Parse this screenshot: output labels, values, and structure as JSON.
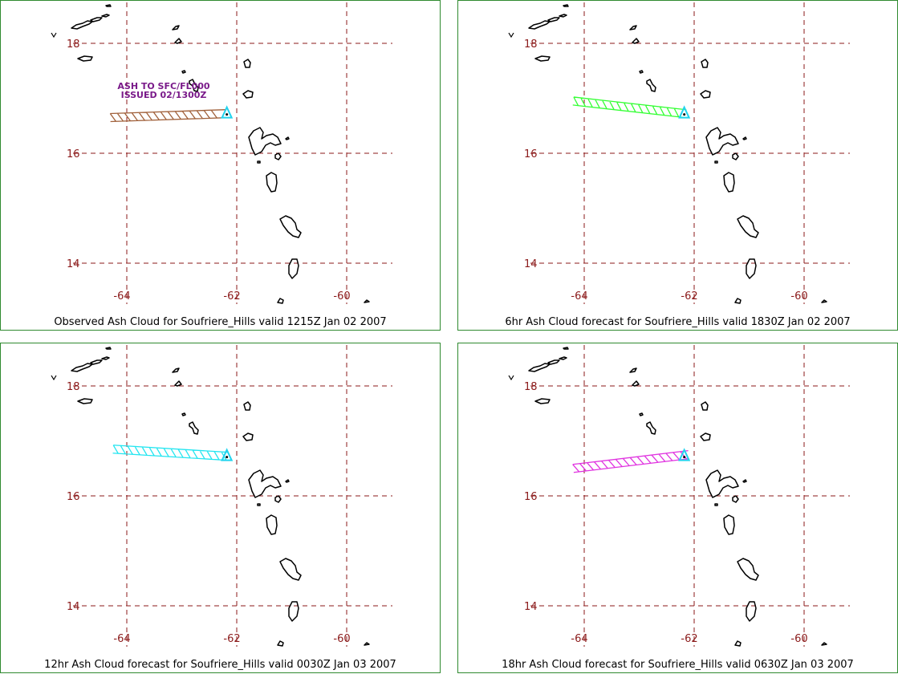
{
  "colors": {
    "border": "#2f8a2f",
    "grid": "#8b1a1a",
    "tick_label": "#8b1a1a",
    "coast": "#000000",
    "volcano_marker": "#22d3ee",
    "annotation": "#7a1a8a"
  },
  "map": {
    "lon_ticks": [
      -64,
      -62,
      -60
    ],
    "lat_ticks": [
      18,
      16,
      14
    ],
    "lon_labels": [
      "-64",
      "-62",
      "-60"
    ],
    "lat_labels": [
      "18",
      "16",
      "14"
    ],
    "volcano": {
      "name": "Soufriere_Hills",
      "lon": -62.18,
      "lat": 16.72,
      "icon": "triangle-icon"
    }
  },
  "panels": [
    {
      "caption": "Observed Ash Cloud for Soufriere_Hills valid 1215Z Jan 02 2007",
      "cloud_color": "#a0603a",
      "cloud_start": {
        "lon": -64.3,
        "lat": 16.65
      },
      "cloud_end": {
        "lon": -62.2,
        "lat": 16.72
      },
      "annotation": [
        "ASH TO SFC/FL000",
        "ISSUED 02/1300Z"
      ]
    },
    {
      "caption": "6hr Ash Cloud forecast for Soufriere_Hills valid 1830Z Jan 02 2007",
      "cloud_color": "#33ff33",
      "cloud_start": {
        "lon": -64.2,
        "lat": 16.95
      },
      "cloud_end": {
        "lon": -62.15,
        "lat": 16.72
      }
    },
    {
      "caption": "12hr Ash Cloud forecast for Soufriere_Hills valid 0030Z Jan 03 2007",
      "cloud_color": "#22e5f0",
      "cloud_start": {
        "lon": -64.25,
        "lat": 16.85
      },
      "cloud_end": {
        "lon": -62.15,
        "lat": 16.72
      }
    },
    {
      "caption": "18hr Ash Cloud forecast for Soufriere_Hills valid 0630Z Jan 03 2007",
      "cloud_color": "#e033e0",
      "cloud_start": {
        "lon": -64.2,
        "lat": 16.5
      },
      "cloud_end": {
        "lon": -62.1,
        "lat": 16.75
      }
    }
  ]
}
